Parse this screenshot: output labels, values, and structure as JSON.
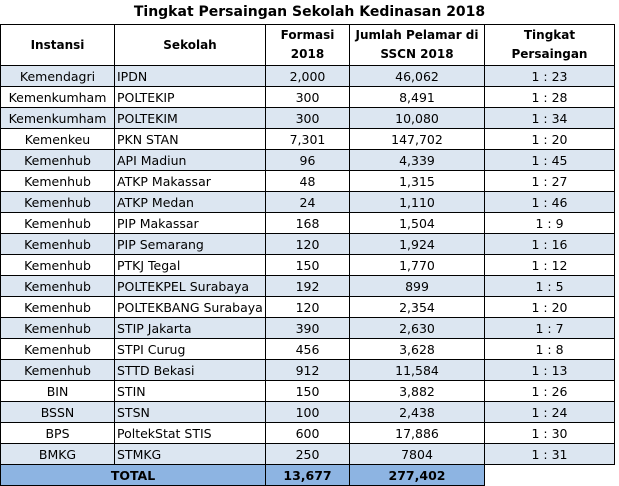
{
  "title": "Tingkat Persaingan Sekolah Kedinasan 2018",
  "headers": {
    "instansi": "Instansi",
    "sekolah": "Sekolah",
    "formasi": "Formasi 2018",
    "pelamar": "Jumlah Pelamar di SSCN 2018",
    "persaingan": "Tingkat Persaingan"
  },
  "rows": [
    {
      "instansi": "Kemendagri",
      "sekolah": "IPDN",
      "formasi": "2,000",
      "pelamar": "46,062",
      "persaingan": "1 : 23"
    },
    {
      "instansi": "Kemenkumham",
      "sekolah": "POLTEKIP",
      "formasi": "300",
      "pelamar": "8,491",
      "persaingan": "1 : 28"
    },
    {
      "instansi": "Kemenkumham",
      "sekolah": "POLTEKIM",
      "formasi": "300",
      "pelamar": "10,080",
      "persaingan": "1 : 34"
    },
    {
      "instansi": "Kemenkeu",
      "sekolah": "PKN STAN",
      "formasi": "7,301",
      "pelamar": "147,702",
      "persaingan": "1 : 20"
    },
    {
      "instansi": "Kemenhub",
      "sekolah": "API Madiun",
      "formasi": "96",
      "pelamar": "4,339",
      "persaingan": "1 : 45"
    },
    {
      "instansi": "Kemenhub",
      "sekolah": "ATKP Makassar",
      "formasi": "48",
      "pelamar": "1,315",
      "persaingan": "1 : 27"
    },
    {
      "instansi": "Kemenhub",
      "sekolah": "ATKP Medan",
      "formasi": "24",
      "pelamar": "1,110",
      "persaingan": "1 : 46"
    },
    {
      "instansi": "Kemenhub",
      "sekolah": "PIP Makassar",
      "formasi": "168",
      "pelamar": "1,504",
      "persaingan": "1 : 9"
    },
    {
      "instansi": "Kemenhub",
      "sekolah": "PIP Semarang",
      "formasi": "120",
      "pelamar": "1,924",
      "persaingan": "1 : 16"
    },
    {
      "instansi": "Kemenhub",
      "sekolah": "PTKJ Tegal",
      "formasi": "150",
      "pelamar": "1,770",
      "persaingan": "1 : 12"
    },
    {
      "instansi": "Kemenhub",
      "sekolah": "POLTEKPEL Surabaya",
      "formasi": "192",
      "pelamar": "899",
      "persaingan": "1 : 5"
    },
    {
      "instansi": "Kemenhub",
      "sekolah": "POLTEKBANG Surabaya",
      "formasi": "120",
      "pelamar": "2,354",
      "persaingan": "1 : 20"
    },
    {
      "instansi": "Kemenhub",
      "sekolah": "STIP Jakarta",
      "formasi": "390",
      "pelamar": "2,630",
      "persaingan": "1 : 7"
    },
    {
      "instansi": "Kemenhub",
      "sekolah": "STPI Curug",
      "formasi": "456",
      "pelamar": "3,628",
      "persaingan": "1 : 8"
    },
    {
      "instansi": "Kemenhub",
      "sekolah": "STTD Bekasi",
      "formasi": "912",
      "pelamar": "11,584",
      "persaingan": "1 : 13"
    },
    {
      "instansi": "BIN",
      "sekolah": "STIN",
      "formasi": "150",
      "pelamar": "3,882",
      "persaingan": "1 : 26"
    },
    {
      "instansi": "BSSN",
      "sekolah": "STSN",
      "formasi": "100",
      "pelamar": "2,438",
      "persaingan": "1 : 24"
    },
    {
      "instansi": "BPS",
      "sekolah": "PoltekStat STIS",
      "formasi": "600",
      "pelamar": "17,886",
      "persaingan": "1 : 30"
    },
    {
      "instansi": "BMKG",
      "sekolah": "STMKG",
      "formasi": "250",
      "pelamar": "7804",
      "persaingan": "1 : 31"
    }
  ],
  "total": {
    "label": "TOTAL",
    "formasi": "13,677",
    "pelamar": "277,402"
  },
  "colors": {
    "row_shade": "#dce6f1",
    "total_fill": "#8db4e2"
  }
}
